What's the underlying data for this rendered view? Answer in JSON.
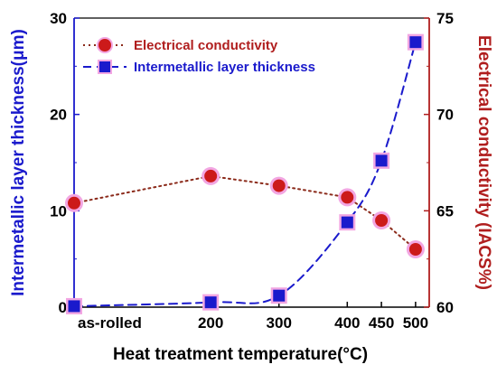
{
  "chart_data": {
    "type": "line",
    "xlabel": "Heat treatment temperature(°C)",
    "ylabel_left": "Intermetallic layer thickness(μm)",
    "ylabel_right": "Electrical conductivity (IACS%)",
    "categories": [
      "as-rolled",
      "200",
      "300",
      "400",
      "450",
      "500"
    ],
    "x_positions": [
      0,
      200,
      300,
      400,
      450,
      500
    ],
    "ylim_left": [
      0,
      30
    ],
    "ylim_right": [
      60,
      75
    ],
    "yticks_left": [
      "0",
      "10",
      "20",
      "30"
    ],
    "yticks_right": [
      "60",
      "65",
      "70",
      "75"
    ],
    "legend_position": "top-left",
    "series": [
      {
        "name": "Electrical conductivity",
        "axis": "right",
        "values": [
          65.4,
          66.8,
          66.3,
          65.7,
          64.5,
          63.0
        ],
        "color": "#cc1a1a",
        "line_color": "#8b2a1a",
        "marker": "circle",
        "line_style": "dotted"
      },
      {
        "name": "Intermetallic layer thickness",
        "axis": "left",
        "values": [
          0.1,
          0.5,
          1.2,
          8.8,
          15.2,
          27.5
        ],
        "color": "#1a1acc",
        "marker": "square",
        "line_style": "dashed"
      }
    ]
  },
  "colors": {
    "left_axis": "#1a1acc",
    "right_axis": "#b01e1e",
    "x_axis": "#000000",
    "highlight": "#f2a6e2"
  }
}
